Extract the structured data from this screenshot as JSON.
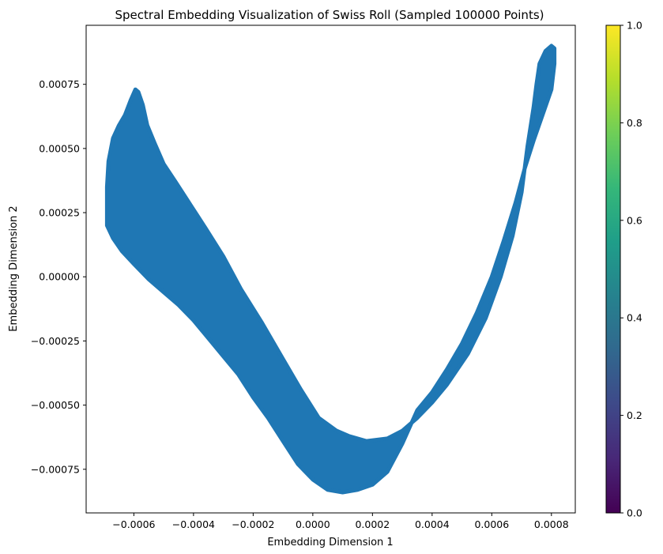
{
  "chart_data": {
    "type": "scatter",
    "title": "Spectral Embedding Visualization of Swiss Roll (Sampled 100000 Points)",
    "xlabel": "Embedding Dimension 1",
    "ylabel": "Embedding Dimension 2",
    "xlim": [
      -0.00076,
      0.00088
    ],
    "ylim": [
      -0.00092,
      0.00098
    ],
    "x_ticks": [
      -0.0006,
      -0.0004,
      -0.0002,
      0.0,
      0.0002,
      0.0004,
      0.0006,
      0.0008
    ],
    "x_tick_labels": [
      "−0.0006",
      "−0.0004",
      "−0.0002",
      "0.0000",
      "0.0002",
      "0.0004",
      "0.0006",
      "0.0008"
    ],
    "y_ticks": [
      -0.00075,
      -0.0005,
      -0.00025,
      0.0,
      0.00025,
      0.0005,
      0.00075
    ],
    "y_tick_labels": [
      "−0.00075",
      "−0.00050",
      "−0.00025",
      "0.00000",
      "0.00025",
      "0.00050",
      "0.00075"
    ],
    "grid": false,
    "marker_color": "#1f77b4",
    "point_region_upper": [
      [
        -0.00069,
        0.0002
      ],
      [
        -0.00069,
        0.00035
      ],
      [
        -0.000685,
        0.00045
      ],
      [
        -0.00067,
        0.00054
      ],
      [
        -0.00065,
        0.00059
      ],
      [
        -0.00063,
        0.00063
      ],
      [
        -0.00061,
        0.00069
      ],
      [
        -0.000595,
        0.00073
      ],
      [
        -0.000585,
        0.00072
      ],
      [
        -0.00057,
        0.00067
      ],
      [
        -0.000555,
        0.00059
      ],
      [
        -0.00053,
        0.00052
      ],
      [
        -0.0005,
        0.00044
      ],
      [
        -0.00046,
        0.00037
      ],
      [
        -0.00041,
        0.00028
      ],
      [
        -0.00036,
        0.00019
      ],
      [
        -0.0003,
        8e-05
      ],
      [
        -0.00024,
        -5e-05
      ],
      [
        -0.00017,
        -0.00018
      ],
      [
        -0.0001,
        -0.00032
      ],
      [
        -4e-05,
        -0.00044
      ],
      [
        2e-05,
        -0.00055
      ],
      [
        8e-05,
        -0.0006
      ],
      [
        0.00012,
        -0.00062
      ],
      [
        0.00018,
        -0.00064
      ],
      [
        0.00025,
        -0.00063
      ],
      [
        0.0003,
        -0.0006
      ],
      [
        0.00035,
        -0.00055
      ],
      [
        0.0004,
        -0.00049
      ],
      [
        0.00045,
        -0.00042
      ],
      [
        0.00052,
        -0.0003
      ],
      [
        0.00058,
        -0.00016
      ],
      [
        0.00063,
        0.0
      ],
      [
        0.00067,
        0.00016
      ],
      [
        0.0007,
        0.00033
      ],
      [
        0.00072,
        0.00051
      ],
      [
        0.00074,
        0.00066
      ],
      [
        0.00075,
        0.00075
      ],
      [
        0.00076,
        0.00083
      ],
      [
        0.00078,
        0.00088
      ],
      [
        0.0008,
        0.0009
      ]
    ],
    "point_region_lower": [
      [
        0.00081,
        0.00089
      ],
      [
        0.00081,
        0.00083
      ],
      [
        0.0008,
        0.00073
      ],
      [
        0.00077,
        0.00063
      ],
      [
        0.00074,
        0.00053
      ],
      [
        0.00071,
        0.00042
      ],
      [
        0.00068,
        0.00029
      ],
      [
        0.00064,
        0.00014
      ],
      [
        0.0006,
        0.0
      ],
      [
        0.00055,
        -0.00014
      ],
      [
        0.0005,
        -0.00026
      ],
      [
        0.00045,
        -0.00036
      ],
      [
        0.0004,
        -0.00045
      ],
      [
        0.00035,
        -0.00052
      ],
      [
        0.0003,
        -0.00065
      ],
      [
        0.00025,
        -0.00076
      ],
      [
        0.0002,
        -0.00081
      ],
      [
        0.00015,
        -0.00083
      ],
      [
        0.0001,
        -0.00084
      ],
      [
        5e-05,
        -0.00083
      ],
      [
        0.0,
        -0.00079
      ],
      [
        -5e-05,
        -0.00073
      ],
      [
        -0.0001,
        -0.00064
      ],
      [
        -0.00015,
        -0.00055
      ],
      [
        -0.0002,
        -0.00047
      ],
      [
        -0.00025,
        -0.00038
      ],
      [
        -0.0003,
        -0.00031
      ],
      [
        -0.00035,
        -0.00024
      ],
      [
        -0.0004,
        -0.00017
      ],
      [
        -0.00045,
        -0.00011
      ],
      [
        -0.0005,
        -6e-05
      ],
      [
        -0.00055,
        -1e-05
      ],
      [
        -0.0006,
        5e-05
      ],
      [
        -0.00064,
        0.0001
      ],
      [
        -0.00067,
        0.00015
      ],
      [
        -0.00069,
        0.0002
      ]
    ],
    "colorbar": {
      "colormap": "viridis",
      "range": [
        0.0,
        1.0
      ],
      "ticks": [
        0.0,
        0.2,
        0.4,
        0.6,
        0.8,
        1.0
      ],
      "tick_labels": [
        "0.0",
        "0.2",
        "0.4",
        "0.6",
        "0.8",
        "1.0"
      ],
      "colors": [
        "#440154",
        "#482878",
        "#3e4989",
        "#31688e",
        "#26828e",
        "#1f9e89",
        "#35b779",
        "#6ece58",
        "#b5de2b",
        "#fde725"
      ]
    }
  }
}
